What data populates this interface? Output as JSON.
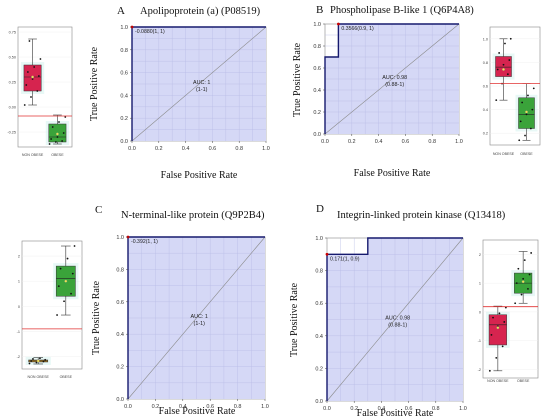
{
  "chart_data": [
    {
      "type": "line",
      "panel": "A",
      "title": "Apolipoprotein (a) (P08519)",
      "xlabel": "False Positive Rate",
      "ylabel": "True Positive Rate",
      "xlim": [
        0,
        1
      ],
      "ylim": [
        0,
        1
      ],
      "xticks": [
        "0.0",
        "0.2",
        "0.4",
        "0.6",
        "0.8",
        "1.0"
      ],
      "yticks": [
        "0.0",
        "0.2",
        "0.4",
        "0.6",
        "0.8",
        "1.0"
      ],
      "roc": [
        [
          0,
          0
        ],
        [
          0,
          1
        ],
        [
          1,
          1
        ]
      ],
      "cutoff_point": [
        0,
        1
      ],
      "cutoff_label": "-0.0880(1, 1)",
      "auc_label": "AUC: 1",
      "auc_ci": "(1-1)",
      "grid": true,
      "fill_color": "#d5d8f6",
      "line_color": "#161a6e",
      "boxplot": {
        "side": "left",
        "categories": [
          "NON OBESE",
          "OBESE"
        ],
        "yticks": [
          "0.75",
          "0.50",
          "0.25",
          "0.00",
          "-0.25"
        ],
        "ylim": [
          -0.4,
          0.8
        ],
        "threshold": -0.09,
        "box_colors": [
          "#d6244f",
          "#3aa33a"
        ],
        "boxes": [
          {
            "min": 0.02,
            "q1": 0.16,
            "median": 0.3,
            "q3": 0.42,
            "max": 0.68,
            "mean": 0.3,
            "points": [
              0.02,
              0.1,
              0.16,
              0.22,
              0.28,
              0.31,
              0.35,
              0.4,
              0.48,
              0.66
            ]
          },
          {
            "min": -0.37,
            "q1": -0.35,
            "median": -0.3,
            "q3": -0.17,
            "max": -0.08,
            "mean": -0.27,
            "points": [
              -0.37,
              -0.35,
              -0.34,
              -0.32,
              -0.3,
              -0.26,
              -0.2,
              -0.15,
              -0.1
            ]
          }
        ]
      }
    },
    {
      "type": "line",
      "panel": "B",
      "title": "Phospholipase B-like 1 (Q6P4A8)",
      "xlabel": "False Positive Rate",
      "ylabel": "True Positive Rate",
      "xlim": [
        0,
        1
      ],
      "ylim": [
        0,
        1
      ],
      "xticks": [
        "0.0",
        "0.2",
        "0.4",
        "0.6",
        "0.8",
        "1.0"
      ],
      "yticks": [
        "0.0",
        "0.2",
        "0.4",
        "0.6",
        "0.8",
        "1.0"
      ],
      "roc": [
        [
          0,
          0
        ],
        [
          0,
          0.7
        ],
        [
          0.1,
          0.7
        ],
        [
          0.1,
          1
        ],
        [
          1,
          1
        ]
      ],
      "cutoff_point": [
        0.1,
        1
      ],
      "cutoff_label": "0.3566(0.9, 1)",
      "auc_label": "AUC: 0.98",
      "auc_ci": "(0.88-1)",
      "grid": true,
      "fill_color": "#d5d8f6",
      "line_color": "#161a6e",
      "boxplot": {
        "side": "right",
        "categories": [
          "NON OBESE",
          "OBESE"
        ],
        "yticks": [
          "1.0",
          "0.8",
          "0.6",
          "0.4",
          "0.2"
        ],
        "ylim": [
          0.1,
          1.1
        ],
        "threshold": 0.62,
        "box_colors": [
          "#d6244f",
          "#3aa33a"
        ],
        "boxes": [
          {
            "min": 0.48,
            "q1": 0.68,
            "median": 0.76,
            "q3": 0.85,
            "max": 1.0,
            "mean": 0.74,
            "points": [
              0.48,
              0.62,
              0.7,
              0.74,
              0.78,
              0.82,
              0.88,
              0.96,
              1.0
            ]
          },
          {
            "min": 0.14,
            "q1": 0.24,
            "median": 0.36,
            "q3": 0.5,
            "max": 0.62,
            "mean": 0.38,
            "points": [
              0.14,
              0.18,
              0.24,
              0.3,
              0.36,
              0.4,
              0.46,
              0.52,
              0.58
            ]
          }
        ]
      }
    },
    {
      "type": "line",
      "panel": "C",
      "title": "N-terminal-like protein (Q9P2B4)",
      "xlabel": "False Positive Rate",
      "ylabel": "True Positive Rate",
      "xlim": [
        0,
        1
      ],
      "ylim": [
        0,
        1
      ],
      "xticks": [
        "0.0",
        "0.2",
        "0.4",
        "0.6",
        "0.8",
        "1.0"
      ],
      "yticks": [
        "0.0",
        "0.2",
        "0.4",
        "0.6",
        "0.8",
        "1.0"
      ],
      "roc": [
        [
          0,
          0
        ],
        [
          0,
          1
        ],
        [
          1,
          1
        ]
      ],
      "cutoff_point": [
        0,
        1
      ],
      "cutoff_label": "-0.392(1, 1)",
      "auc_label": "AUC: 1",
      "auc_ci": "(1-1)",
      "grid": true,
      "fill_color": "#d5d8f6",
      "line_color": "#161a6e",
      "boxplot": {
        "side": "left",
        "categories": [
          "NON OBESE",
          "OBESE"
        ],
        "yticks": [
          "2",
          "1",
          "0",
          "-1",
          "-2"
        ],
        "ylim": [
          -2.5,
          2.6
        ],
        "threshold": -0.9,
        "box_colors": [
          "#e0a020",
          "#3aa33a"
        ],
        "boxes": [
          {
            "min": -2.3,
            "q1": -2.22,
            "median": -2.18,
            "q3": -2.14,
            "max": -2.05,
            "mean": -2.18,
            "points": [
              -2.28,
              -2.24,
              -2.2,
              -2.18,
              -2.16,
              -2.13,
              -2.1,
              -2.07
            ]
          },
          {
            "min": -0.35,
            "q1": 0.4,
            "median": 1.1,
            "q3": 1.6,
            "max": 2.4,
            "mean": 1.0,
            "points": [
              -0.35,
              0.2,
              0.5,
              0.8,
              1.0,
              1.3,
              1.5,
              1.9,
              2.4
            ]
          }
        ]
      }
    },
    {
      "type": "line",
      "panel": "D",
      "title": "Integrin-linked protein kinase (Q13418)",
      "xlabel": "False Positive Rate",
      "ylabel": "True Positive Rate",
      "xlim": [
        0,
        1
      ],
      "ylim": [
        0,
        1
      ],
      "xticks": [
        "0.0",
        "0.2",
        "0.4",
        "0.6",
        "0.8",
        "1.0"
      ],
      "yticks": [
        "0.0",
        "0.2",
        "0.4",
        "0.6",
        "0.8",
        "1.0"
      ],
      "roc": [
        [
          0,
          0
        ],
        [
          0,
          0.9
        ],
        [
          0.3,
          0.9
        ],
        [
          0.3,
          1
        ],
        [
          1,
          1
        ]
      ],
      "cutoff_point": [
        0,
        0.9
      ],
      "cutoff_label": "0.171(1, 0.9)",
      "auc_label": "AUC: 0.98",
      "auc_ci": "(0.88-1)",
      "grid": true,
      "fill_color": "#d5d8f6",
      "line_color": "#161a6e",
      "boxplot": {
        "side": "right",
        "categories": [
          "NON OBESE",
          "OBESE"
        ],
        "yticks": [
          "2",
          "1",
          "0",
          "-1",
          "-2"
        ],
        "ylim": [
          -2.3,
          2.5
        ],
        "threshold": 0.18,
        "box_colors": [
          "#d6244f",
          "#3aa33a"
        ],
        "boxes": [
          {
            "min": -2.05,
            "q1": -1.15,
            "median": -0.45,
            "q3": -0.1,
            "max": 0.2,
            "mean": -0.55,
            "points": [
              -2.05,
              -1.6,
              -1.2,
              -0.8,
              -0.5,
              -0.35,
              -0.2,
              -0.05,
              0.15
            ]
          },
          {
            "min": 0.3,
            "q1": 0.65,
            "median": 1.0,
            "q3": 1.35,
            "max": 2.1,
            "mean": 1.05,
            "points": [
              0.3,
              0.6,
              0.8,
              1.0,
              1.15,
              1.3,
              1.5,
              1.8,
              2.05
            ]
          }
        ]
      }
    }
  ]
}
